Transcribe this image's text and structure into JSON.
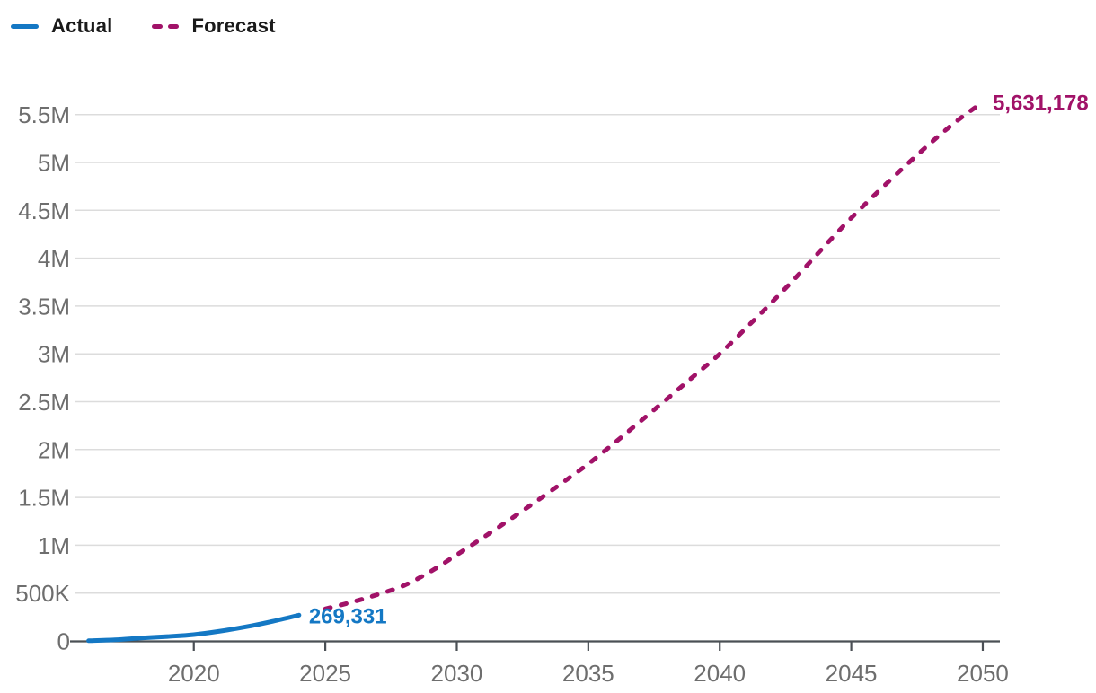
{
  "legend": {
    "items": [
      {
        "label": "Actual",
        "color": "#1478C4",
        "style": "solid"
      },
      {
        "label": "Forecast",
        "color": "#A11268",
        "style": "dashed"
      }
    ]
  },
  "chart_data": {
    "type": "line",
    "title": "",
    "xlabel": "",
    "ylabel": "",
    "grid": "horizontal",
    "legend_position": "top-left",
    "xlim": [
      2015.5,
      2050.65
    ],
    "ylim": [
      0,
      5850000
    ],
    "x_ticks": [
      {
        "value": 2020,
        "label": "2020"
      },
      {
        "value": 2025,
        "label": "2025"
      },
      {
        "value": 2030,
        "label": "2030"
      },
      {
        "value": 2035,
        "label": "2035"
      },
      {
        "value": 2040,
        "label": "2040"
      },
      {
        "value": 2045,
        "label": "2045"
      },
      {
        "value": 2050,
        "label": "2050"
      }
    ],
    "y_ticks": [
      {
        "value": 0,
        "label": "0"
      },
      {
        "value": 500000,
        "label": "500K"
      },
      {
        "value": 1000000,
        "label": "1M"
      },
      {
        "value": 1500000,
        "label": "1.5M"
      },
      {
        "value": 2000000,
        "label": "2M"
      },
      {
        "value": 2500000,
        "label": "2.5M"
      },
      {
        "value": 3000000,
        "label": "3M"
      },
      {
        "value": 3500000,
        "label": "3.5M"
      },
      {
        "value": 4000000,
        "label": "4M"
      },
      {
        "value": 4500000,
        "label": "4.5M"
      },
      {
        "value": 5000000,
        "label": "5M"
      },
      {
        "value": 5500000,
        "label": "5.5M"
      }
    ],
    "series": [
      {
        "name": "Actual",
        "color": "#1478C4",
        "dash": false,
        "end_label": "269,331",
        "points": [
          [
            2016,
            2000
          ],
          [
            2017,
            12000
          ],
          [
            2018,
            30000
          ],
          [
            2019,
            46000
          ],
          [
            2020,
            66000
          ],
          [
            2021,
            102000
          ],
          [
            2022,
            148000
          ],
          [
            2023,
            205000
          ],
          [
            2024,
            269331
          ]
        ]
      },
      {
        "name": "Forecast",
        "color": "#A11268",
        "dash": true,
        "end_label": "5,631,178",
        "points": [
          [
            2025,
            335000
          ],
          [
            2026,
            405000
          ],
          [
            2027,
            485000
          ],
          [
            2028,
            580000
          ],
          [
            2029,
            725000
          ],
          [
            2030,
            900000
          ],
          [
            2031,
            1080000
          ],
          [
            2032,
            1265000
          ],
          [
            2033,
            1455000
          ],
          [
            2034,
            1650000
          ],
          [
            2035,
            1850000
          ],
          [
            2036,
            2070000
          ],
          [
            2037,
            2300000
          ],
          [
            2038,
            2530000
          ],
          [
            2039,
            2765000
          ],
          [
            2040,
            3000000
          ],
          [
            2041,
            3270000
          ],
          [
            2042,
            3545000
          ],
          [
            2043,
            3830000
          ],
          [
            2044,
            4130000
          ],
          [
            2045,
            4420000
          ],
          [
            2046,
            4690000
          ],
          [
            2047,
            4950000
          ],
          [
            2048,
            5200000
          ],
          [
            2049,
            5430000
          ],
          [
            2050,
            5631178
          ]
        ]
      }
    ],
    "axis_colors": {
      "grid": "#dcdcdc",
      "axis": "#4b5055",
      "tick_text": "#6e6e6e"
    }
  }
}
